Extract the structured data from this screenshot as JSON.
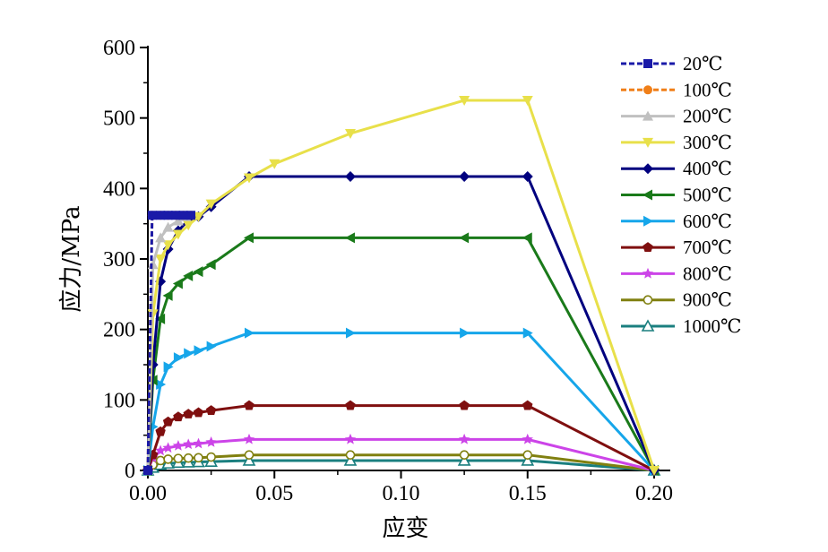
{
  "chart_data": {
    "type": "line",
    "title": "",
    "xlabel": "应变",
    "ylabel": "应力/MPa",
    "xlim": [
      0,
      0.2
    ],
    "ylim": [
      0,
      600
    ],
    "xticks": [
      0.0,
      0.05,
      0.1,
      0.15,
      0.2
    ],
    "xtick_labels": [
      "0.00",
      "0.05",
      "0.10",
      "0.15",
      "0.20"
    ],
    "yticks": [
      0,
      100,
      200,
      300,
      400,
      500,
      600
    ],
    "ytick_labels": [
      "0",
      "100",
      "200",
      "300",
      "400",
      "500",
      "600"
    ],
    "grid": false,
    "legend_position": "right",
    "series": [
      {
        "name": "20℃",
        "color": "#1a1aa8",
        "marker": "square",
        "dash": "6,3",
        "x": [
          0,
          0.0017,
          0.005,
          0.008,
          0.011,
          0.014,
          0.017
        ],
        "y": [
          0,
          362,
          362,
          362,
          362,
          362,
          362
        ]
      },
      {
        "name": "100℃",
        "color": "#f07f18",
        "marker": "circle",
        "dash": "6,3",
        "x": [
          0,
          0.0017,
          0.005,
          0.008,
          0.011,
          0.014,
          0.017
        ],
        "y": [
          0,
          362,
          362,
          362,
          362,
          362,
          362
        ]
      },
      {
        "name": "200℃",
        "color": "#c0c0c0",
        "marker": "triangle-up",
        "dash": "",
        "x": [
          0,
          0.002,
          0.005,
          0.008,
          0.012,
          0.015
        ],
        "y": [
          0,
          292,
          330,
          345,
          354,
          360
        ]
      },
      {
        "name": "300℃",
        "color": "#e8e04a",
        "marker": "triangle-down",
        "dash": "",
        "x": [
          0,
          0.002,
          0.005,
          0.008,
          0.012,
          0.016,
          0.02,
          0.025,
          0.04,
          0.05,
          0.08,
          0.125,
          0.15,
          0.2
        ],
        "y": [
          0,
          222,
          300,
          320,
          335,
          348,
          360,
          378,
          415,
          435,
          478,
          525,
          525,
          0
        ]
      },
      {
        "name": "400℃",
        "color": "#00007f",
        "marker": "diamond",
        "dash": "",
        "x": [
          0,
          0.002,
          0.005,
          0.008,
          0.012,
          0.016,
          0.02,
          0.025,
          0.04,
          0.08,
          0.125,
          0.15,
          0.2
        ],
        "y": [
          0,
          150,
          268,
          314,
          340,
          355,
          360,
          374,
          417,
          417,
          417,
          417,
          0
        ]
      },
      {
        "name": "500℃",
        "color": "#1a7a1a",
        "marker": "triangle-left",
        "dash": "",
        "x": [
          0,
          0.002,
          0.005,
          0.008,
          0.012,
          0.016,
          0.02,
          0.025,
          0.04,
          0.08,
          0.125,
          0.15,
          0.2
        ],
        "y": [
          0,
          128,
          215,
          248,
          265,
          276,
          282,
          292,
          330,
          330,
          330,
          330,
          0
        ]
      },
      {
        "name": "600℃",
        "color": "#16a6ea",
        "marker": "triangle-right",
        "dash": "",
        "x": [
          0,
          0.002,
          0.005,
          0.008,
          0.012,
          0.016,
          0.02,
          0.025,
          0.04,
          0.08,
          0.125,
          0.15,
          0.2
        ],
        "y": [
          0,
          62,
          122,
          147,
          160,
          166,
          170,
          176,
          195,
          195,
          195,
          195,
          0
        ]
      },
      {
        "name": "700℃",
        "color": "#7f0f0f",
        "marker": "pentagon",
        "dash": "",
        "x": [
          0,
          0.002,
          0.005,
          0.008,
          0.012,
          0.016,
          0.02,
          0.025,
          0.04,
          0.08,
          0.125,
          0.15,
          0.2
        ],
        "y": [
          0,
          22,
          55,
          69,
          76,
          80,
          82,
          85,
          92,
          92,
          92,
          92,
          0
        ]
      },
      {
        "name": "800℃",
        "color": "#cc44e8",
        "marker": "star",
        "dash": "",
        "x": [
          0,
          0.002,
          0.005,
          0.008,
          0.012,
          0.016,
          0.02,
          0.025,
          0.04,
          0.08,
          0.125,
          0.15,
          0.2
        ],
        "y": [
          0,
          18,
          28,
          32,
          35,
          37,
          38,
          40,
          44,
          44,
          44,
          44,
          0
        ]
      },
      {
        "name": "900℃",
        "color": "#808010",
        "marker": "circle-open",
        "dash": "",
        "x": [
          0,
          0.002,
          0.005,
          0.008,
          0.012,
          0.016,
          0.02,
          0.025,
          0.04,
          0.08,
          0.125,
          0.15,
          0.2
        ],
        "y": [
          0,
          8,
          14,
          16,
          17,
          17.5,
          18,
          19,
          22,
          22,
          22,
          22,
          0
        ]
      },
      {
        "name": "1000℃",
        "color": "#1a7f7f",
        "marker": "triangle-open",
        "dash": "",
        "x": [
          0,
          0.002,
          0.005,
          0.008,
          0.012,
          0.016,
          0.02,
          0.025,
          0.04,
          0.08,
          0.125,
          0.15,
          0.2
        ],
        "y": [
          0,
          4,
          8,
          10,
          11,
          11.5,
          12,
          12.5,
          14,
          14,
          14,
          14,
          0
        ]
      }
    ]
  }
}
